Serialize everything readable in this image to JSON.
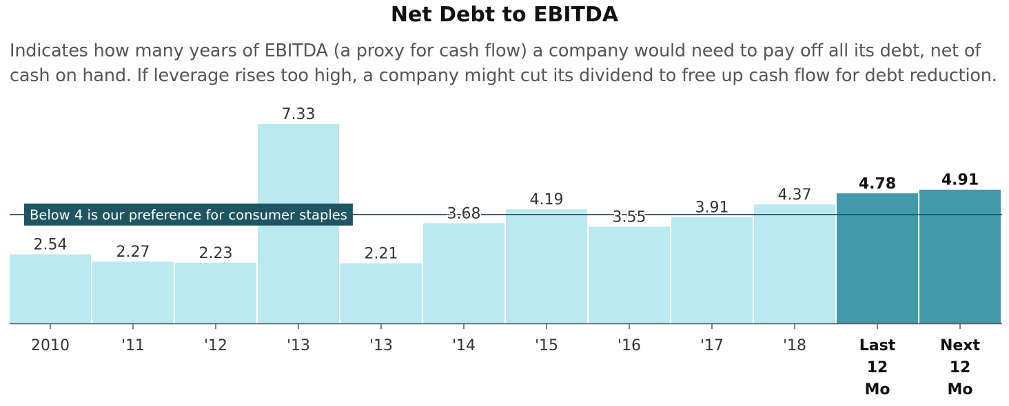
{
  "chart_data": {
    "type": "bar",
    "title": "Net Debt to EBITDA",
    "subtitle": "Indicates how many years of EBITDA (a proxy for cash flow) a company would need to pay off all its debt, net of cash on hand. If leverage rises too high, a company might cut its dividend to free up cash flow for debt reduction.",
    "categories": [
      "2010",
      "'11",
      "'12",
      "'13",
      "'13",
      "'14",
      "'15",
      "'16",
      "'17",
      "'18",
      "Last 12 Mo",
      "Next 12 Mo"
    ],
    "category_lines": [
      [
        "2010"
      ],
      [
        "'11"
      ],
      [
        "'12"
      ],
      [
        "'13"
      ],
      [
        "'13"
      ],
      [
        "'14"
      ],
      [
        "'15"
      ],
      [
        "'16"
      ],
      [
        "'17"
      ],
      [
        "'18"
      ],
      [
        "Last",
        "12",
        "Mo"
      ],
      [
        "Next",
        "12",
        "Mo"
      ]
    ],
    "values": [
      2.54,
      2.27,
      2.23,
      7.33,
      2.21,
      3.68,
      4.19,
      3.55,
      3.91,
      4.37,
      4.78,
      4.91
    ],
    "value_labels": [
      "2.54",
      "2.27",
      "2.23",
      "7.33",
      "2.21",
      "3.68",
      "4.19",
      "3.55",
      "3.91",
      "4.37",
      "4.78",
      "4.91"
    ],
    "highlighted": [
      false,
      false,
      false,
      false,
      false,
      false,
      false,
      false,
      false,
      false,
      true,
      true
    ],
    "reference_line": {
      "value": 4,
      "label": "Below 4 is our preference for consumer staples"
    },
    "xlabel": "",
    "ylabel": "",
    "ylim": [
      0,
      7.33
    ],
    "grid": false,
    "legend": "none",
    "colors": {
      "bar": "#bbe9f0",
      "bar_highlight": "#4199aa",
      "reference_line": "#1f5560",
      "reference_label_bg": "#1f5560",
      "axis": "#555555"
    }
  }
}
